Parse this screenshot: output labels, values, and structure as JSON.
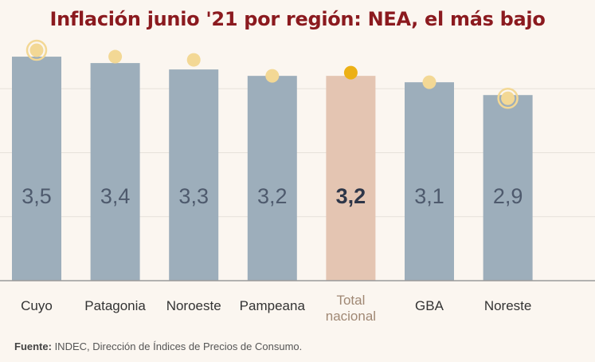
{
  "chart_data": {
    "type": "bar",
    "title": "Inflación junio '21 por región: NEA, el más bajo",
    "categories": [
      "Cuyo",
      "Patagonia",
      "Noroeste",
      "Pampeana",
      "Total nacional",
      "GBA",
      "Noreste"
    ],
    "category_lines": [
      [
        "Cuyo"
      ],
      [
        "Patagonia"
      ],
      [
        "Noroeste"
      ],
      [
        "Pampeana"
      ],
      [
        "Total",
        "nacional"
      ],
      [
        "GBA"
      ],
      [
        "Noreste"
      ]
    ],
    "values": [
      3.5,
      3.4,
      3.3,
      3.2,
      3.2,
      3.1,
      2.9
    ],
    "value_labels": [
      "3,5",
      "3,4",
      "3,3",
      "3,2",
      "3,2",
      "3,1",
      "2,9"
    ],
    "highlight_index": 4,
    "marker_values": [
      3.6,
      3.5,
      3.45,
      3.2,
      3.25,
      3.1,
      2.85
    ],
    "ringed_markers": [
      0,
      6
    ],
    "ylim": [
      0,
      3.7
    ],
    "grid": true,
    "colors": {
      "bar": "#9daebb",
      "bar_highlight": "#e4c5b2",
      "marker": "#f3d895",
      "marker_highlight": "#ecb015",
      "label": "#4e5a6d",
      "label_highlight": "#2e3648",
      "category_highlight": "#a08874",
      "grid": "#e6e1da",
      "title": "#8b1a1f"
    }
  },
  "source": {
    "prefix": "Fuente:",
    "text": " INDEC, Dirección de Índices de Precios de Consumo."
  }
}
